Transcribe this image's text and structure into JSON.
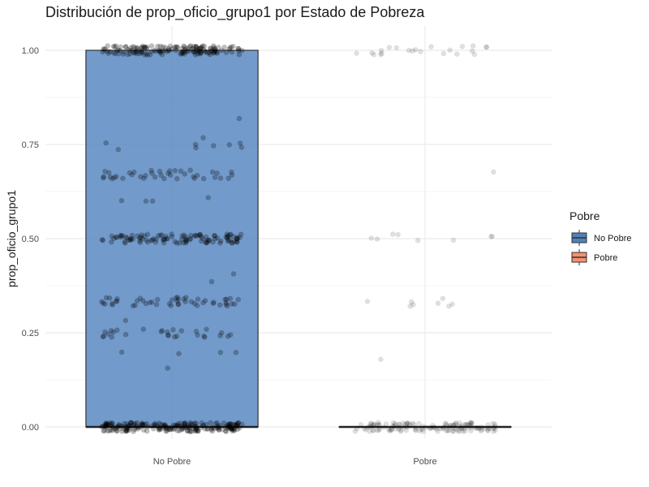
{
  "colors": {
    "no_pobre_fill": "#4f81bd",
    "pobre_fill": "#f4906f",
    "point": "#000000",
    "grid": "#ebebeb",
    "text": "#4d4d4d"
  },
  "chart_data": {
    "type": "boxplot",
    "title": "Distribución de prop_oficio_grupo1 por Estado de Pobreza",
    "xlabel": "",
    "ylabel": "prop_oficio_grupo1",
    "categories": [
      "No Pobre",
      "Pobre"
    ],
    "ylim": [
      -0.04,
      1.04
    ],
    "yticks": [
      0.0,
      0.25,
      0.5,
      0.75,
      1.0
    ],
    "ytick_labels": [
      "0.00",
      "0.25",
      "0.50",
      "0.75",
      "1.00"
    ],
    "grid": true,
    "legend": {
      "title": "Pobre",
      "position": "right",
      "entries": [
        "No Pobre",
        "Pobre"
      ]
    },
    "boxes": [
      {
        "category": "No Pobre",
        "q1": 0.0,
        "median": 0.0,
        "q3": 1.0,
        "whisker_low": 0.0,
        "whisker_high": 1.0
      },
      {
        "category": "Pobre",
        "q1": 0.0,
        "median": 0.0,
        "q3": 0.0,
        "whisker_low": 0.0,
        "whisker_high": 0.0
      }
    ],
    "jitter_points": {
      "No Pobre": [
        {
          "y": 1.0,
          "count": 160
        },
        {
          "y": 0.812,
          "count": 1
        },
        {
          "y": 0.76,
          "count": 1
        },
        {
          "y": 0.75,
          "count": 6
        },
        {
          "y": 0.745,
          "count": 2
        },
        {
          "y": 0.67,
          "count": 40
        },
        {
          "y": 0.6,
          "count": 4
        },
        {
          "y": 0.5,
          "count": 110
        },
        {
          "y": 0.4,
          "count": 1
        },
        {
          "y": 0.39,
          "count": 1
        },
        {
          "y": 0.333,
          "count": 50
        },
        {
          "y": 0.278,
          "count": 1
        },
        {
          "y": 0.25,
          "count": 28
        },
        {
          "y": 0.2,
          "count": 4
        },
        {
          "y": 0.167,
          "count": 1
        },
        {
          "y": 0.0,
          "count": 220
        }
      ],
      "Pobre": [
        {
          "y": 1.0,
          "count": 22
        },
        {
          "y": 0.68,
          "count": 1
        },
        {
          "y": 0.5,
          "count": 8
        },
        {
          "y": 0.33,
          "count": 8
        },
        {
          "y": 0.188,
          "count": 1
        },
        {
          "y": 0.0,
          "count": 140
        }
      ]
    }
  }
}
